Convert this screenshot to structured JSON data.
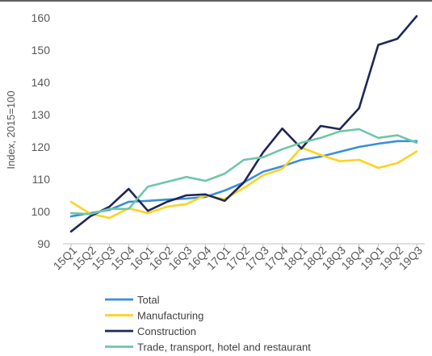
{
  "chart_data": {
    "type": "line",
    "title": "",
    "xlabel": "",
    "ylabel": "Index, 2015=100",
    "ylim": [
      90,
      160
    ],
    "yticks": [
      90,
      100,
      110,
      120,
      130,
      140,
      150,
      160
    ],
    "categories": [
      "15Q1",
      "15Q2",
      "15Q3",
      "15Q4",
      "16Q1",
      "16Q2",
      "16Q3",
      "16Q4",
      "17Q1",
      "17Q2",
      "17Q3",
      "17Q4",
      "18Q1",
      "18Q2",
      "18Q3",
      "18Q4",
      "19Q1",
      "19Q2",
      "19Q3"
    ],
    "grid": false,
    "legend_position": "bottom",
    "series": [
      {
        "name": "Total",
        "color": "#3A8EDB",
        "values": [
          98.5,
          99.5,
          100.5,
          103.0,
          103.3,
          103.7,
          104.0,
          104.5,
          106.5,
          109.0,
          112.3,
          114.0,
          116.0,
          117.0,
          118.5,
          120.0,
          121.0,
          121.8,
          121.8
        ]
      },
      {
        "name": "Manufacturing",
        "color": "#FFD21F",
        "values": [
          103.0,
          99.3,
          98.0,
          101.0,
          99.5,
          101.5,
          102.3,
          105.0,
          103.8,
          107.3,
          111.2,
          113.2,
          119.8,
          117.5,
          115.6,
          116.0,
          113.5,
          115.0,
          118.6
        ]
      },
      {
        "name": "Construction",
        "color": "#1F2757",
        "values": [
          93.8,
          98.5,
          101.5,
          107.0,
          100.2,
          103.0,
          105.0,
          105.3,
          103.3,
          109.0,
          118.3,
          125.7,
          119.5,
          126.5,
          125.5,
          132.0,
          151.6,
          153.5,
          160.5
        ]
      },
      {
        "name": "Trade, transport, hotel and restaurant",
        "color": "#6DC7A6",
        "values": [
          99.5,
          99.2,
          100.8,
          100.8,
          107.7,
          109.2,
          110.7,
          109.5,
          111.7,
          116.0,
          116.8,
          119.3,
          121.3,
          122.8,
          124.8,
          125.5,
          122.8,
          123.6,
          121.3
        ]
      }
    ]
  }
}
